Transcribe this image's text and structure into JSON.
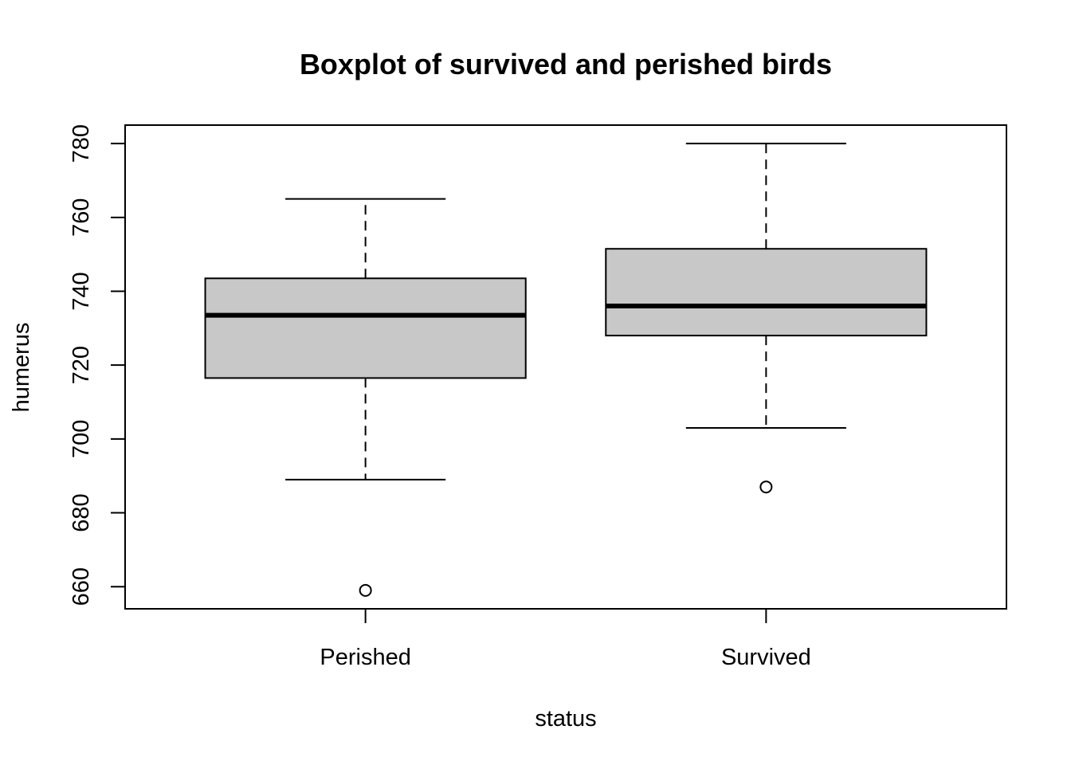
{
  "chart_data": {
    "type": "boxplot",
    "title": "Boxplot of survived and perished birds",
    "xlabel": "status",
    "ylabel": "humerus",
    "ylim": [
      654,
      785
    ],
    "yticks": [
      660,
      680,
      700,
      720,
      740,
      760,
      780
    ],
    "grid": false,
    "box_fill": "#c8c8c8",
    "groups": [
      {
        "label": "Perished",
        "whisker_low": 689,
        "q1": 716.5,
        "median": 733.5,
        "q3": 743.5,
        "whisker_high": 765,
        "outliers": [
          659
        ]
      },
      {
        "label": "Survived",
        "whisker_low": 703,
        "q1": 728,
        "median": 736,
        "q3": 751.5,
        "whisker_high": 780,
        "outliers": [
          687
        ]
      }
    ]
  }
}
